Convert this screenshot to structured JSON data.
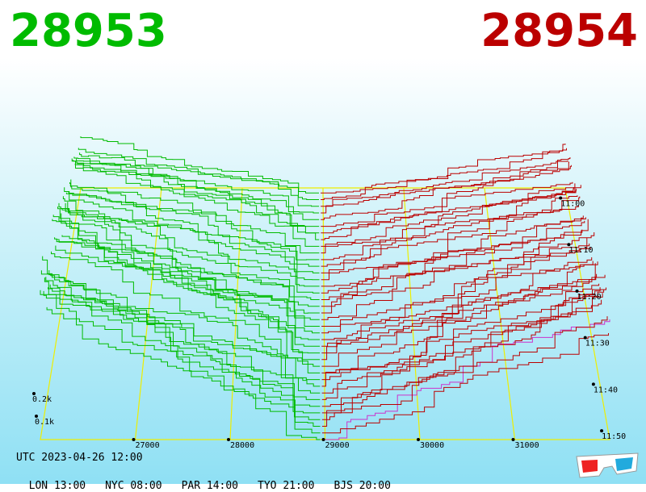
{
  "header": {
    "bid_price": "28953",
    "ask_price": "28954"
  },
  "footer": {
    "utc": "UTC 2023-04-26 12:00",
    "timezones": [
      "LON 13:00",
      "NYC 08:00",
      "PAR 14:00",
      "TYO 21:00",
      "BJS 20:00"
    ]
  },
  "colors": {
    "bid": "#00bb00",
    "ask": "#bb0000",
    "grid": "#eeee00",
    "latest_ask": "#cc33cc"
  },
  "icons": [
    "3d-glasses-icon"
  ],
  "chart_data": {
    "type": "line",
    "x_ticks": [
      27000,
      28000,
      29000,
      30000,
      31000
    ],
    "x_tick_labels": [
      "27000",
      "28000",
      "29000",
      "30000",
      "31000"
    ],
    "time_ticks": [
      "11:00",
      "11:10",
      "11:20",
      "11:30",
      "11:40",
      "11:50"
    ],
    "depth_ticks": [
      "0.2k",
      "0.1k"
    ],
    "xlim": [
      26000,
      32000
    ],
    "grid": true
  }
}
